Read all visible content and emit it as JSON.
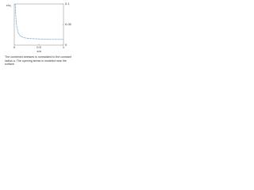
{
  "chart_data": {
    "type": "line",
    "ylabel": "ε/ε₀",
    "xlabel": "x/a",
    "x": [
      0.02,
      0.03,
      0.05,
      0.08,
      0.12,
      0.2,
      0.3,
      0.5,
      0.7,
      1.0
    ],
    "series": [
      {
        "color": "#4a90c8",
        "values": [
          0.1,
          0.07,
          0.045,
          0.03,
          0.022,
          0.018,
          0.016,
          0.015,
          0.014,
          0.014
        ]
      }
    ],
    "xlim": [
      0,
      1
    ],
    "xticks": [
      0,
      0.5,
      1
    ],
    "ylim": [
      0,
      0.1
    ],
    "yticks": [
      0,
      0.05,
      0.1
    ]
  },
  "caption": "The combined stresses is normalized to the constant radius a. The opening stress is modeled near the surface."
}
